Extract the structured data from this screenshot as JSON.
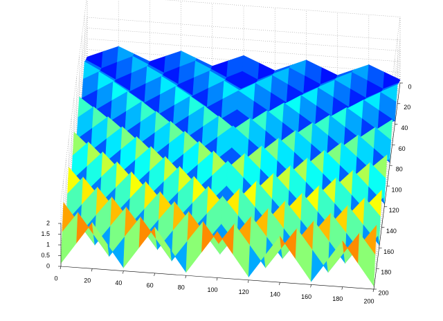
{
  "chart_data": {
    "type": "surface",
    "x": [
      0,
      10,
      20,
      30,
      40,
      50,
      60,
      70,
      80,
      90,
      100,
      110,
      120,
      130,
      140,
      150,
      160,
      170,
      180,
      190,
      200
    ],
    "y": [
      0,
      10,
      20,
      30,
      40,
      50,
      60,
      70,
      80,
      90,
      100,
      110,
      120,
      130,
      140,
      150,
      160,
      170,
      180,
      190,
      200
    ],
    "z": [
      [
        0.15,
        0.45,
        0.75,
        0.45,
        0.15,
        0.45,
        0.75,
        0.45,
        0.15,
        0.45,
        0.75,
        0.45,
        0.15,
        0.45,
        0.75,
        0.45,
        0.15,
        0.45,
        0.75,
        0.45,
        0.15
      ],
      [
        0.49,
        0.15,
        0.49,
        0.82,
        0.49,
        0.15,
        0.49,
        0.82,
        0.49,
        0.15,
        0.49,
        0.15,
        0.49,
        0.82,
        0.49,
        0.15,
        0.49,
        0.82,
        0.49,
        0.15,
        0.49
      ],
      [
        0.89,
        0.52,
        0.15,
        0.52,
        0.89,
        0.52,
        0.15,
        0.52,
        0.89,
        0.52,
        0.15,
        0.52,
        0.89,
        0.52,
        0.15,
        0.52,
        0.89,
        0.52,
        0.15,
        0.52,
        0.89
      ],
      [
        0.56,
        0.96,
        0.56,
        0.15,
        0.56,
        0.96,
        0.56,
        0.15,
        0.56,
        0.96,
        0.56,
        0.96,
        0.56,
        0.15,
        0.56,
        0.96,
        0.56,
        0.15,
        0.56,
        0.96,
        0.56
      ],
      [
        0.15,
        0.59,
        1.03,
        0.59,
        0.15,
        0.59,
        1.03,
        0.59,
        0.15,
        0.59,
        1.03,
        0.59,
        0.15,
        0.59,
        1.03,
        0.59,
        0.15,
        0.59,
        1.03,
        0.59,
        0.15
      ],
      [
        0.63,
        0.15,
        0.63,
        1.1,
        0.63,
        0.15,
        0.63,
        1.1,
        0.63,
        0.15,
        0.63,
        0.15,
        0.63,
        1.1,
        0.63,
        0.15,
        0.63,
        1.1,
        0.63,
        0.15,
        0.63
      ],
      [
        1.17,
        0.66,
        0.15,
        0.66,
        1.17,
        0.66,
        0.15,
        0.66,
        1.17,
        0.66,
        0.15,
        0.66,
        1.17,
        0.66,
        0.15,
        0.66,
        1.17,
        0.66,
        0.15,
        0.66,
        1.17
      ],
      [
        0.7,
        1.24,
        0.7,
        0.15,
        0.7,
        1.24,
        0.7,
        0.15,
        0.7,
        1.24,
        0.7,
        1.24,
        0.7,
        0.15,
        0.7,
        1.24,
        0.7,
        0.15,
        0.7,
        1.24,
        0.7
      ],
      [
        0.15,
        0.73,
        1.31,
        0.73,
        0.15,
        0.73,
        1.31,
        0.73,
        0.15,
        0.73,
        1.31,
        0.73,
        0.15,
        0.73,
        1.31,
        0.73,
        0.15,
        0.73,
        1.31,
        0.73,
        0.15
      ],
      [
        0.77,
        0.15,
        0.77,
        1.38,
        0.77,
        0.15,
        0.77,
        1.38,
        0.77,
        0.15,
        0.77,
        0.15,
        0.77,
        1.38,
        0.77,
        0.15,
        0.77,
        1.38,
        0.77,
        0.15,
        0.77
      ],
      [
        1.45,
        0.8,
        0.15,
        0.8,
        1.45,
        0.8,
        0.15,
        0.8,
        1.45,
        0.8,
        0.15,
        0.8,
        1.45,
        0.8,
        0.15,
        0.8,
        1.45,
        0.8,
        0.15,
        0.8,
        1.45
      ],
      [
        0.84,
        1.52,
        0.84,
        0.15,
        0.84,
        1.52,
        0.84,
        0.15,
        0.84,
        1.52,
        0.84,
        1.52,
        0.84,
        0.15,
        0.84,
        1.52,
        0.84,
        0.15,
        0.84,
        1.52,
        0.84
      ],
      [
        0.15,
        0.87,
        1.59,
        0.87,
        0.15,
        0.87,
        1.59,
        0.87,
        0.15,
        0.87,
        1.59,
        0.87,
        0.15,
        0.87,
        1.59,
        0.87,
        0.15,
        0.87,
        1.59,
        0.87,
        0.15
      ],
      [
        0.91,
        0.15,
        0.91,
        1.66,
        0.91,
        0.15,
        0.91,
        1.66,
        0.91,
        0.15,
        0.91,
        0.15,
        0.91,
        1.66,
        0.91,
        0.15,
        0.91,
        1.66,
        0.91,
        0.15,
        0.91
      ],
      [
        1.73,
        0.94,
        0.15,
        0.94,
        1.73,
        0.94,
        0.15,
        0.94,
        1.73,
        0.94,
        0.15,
        0.94,
        1.73,
        0.94,
        0.15,
        0.94,
        1.73,
        0.94,
        0.15,
        0.94,
        1.73
      ],
      [
        0.98,
        1.8,
        0.98,
        0.15,
        0.98,
        1.8,
        0.98,
        0.15,
        0.98,
        1.8,
        0.98,
        1.8,
        0.98,
        0.15,
        0.98,
        1.8,
        0.98,
        0.15,
        0.98,
        1.8,
        0.98
      ],
      [
        0.15,
        1.01,
        1.87,
        1.01,
        0.15,
        1.01,
        1.87,
        1.01,
        0.15,
        1.01,
        1.87,
        1.01,
        0.15,
        1.01,
        1.87,
        1.01,
        0.15,
        1.01,
        1.87,
        1.01,
        0.15
      ],
      [
        1.05,
        0.15,
        1.05,
        1.94,
        1.05,
        0.15,
        1.05,
        1.94,
        1.05,
        0.15,
        1.05,
        0.15,
        1.05,
        1.94,
        1.05,
        0.15,
        1.05,
        1.94,
        1.05,
        0.15,
        1.05
      ],
      [
        2.01,
        1.08,
        0.15,
        1.08,
        2.01,
        1.08,
        0.15,
        1.08,
        2.01,
        1.08,
        0.15,
        1.08,
        2.01,
        1.08,
        0.15,
        1.08,
        2.01,
        1.08,
        0.15,
        1.08,
        2.01
      ],
      [
        1.12,
        2.08,
        1.12,
        0.15,
        1.12,
        2.08,
        1.12,
        0.15,
        1.12,
        2.08,
        1.12,
        2.08,
        1.12,
        0.15,
        1.12,
        2.08,
        1.12,
        0.15,
        1.12,
        2.08,
        1.12
      ],
      [
        0.15,
        1.15,
        2.15,
        1.15,
        0.15,
        1.15,
        2.15,
        1.15,
        0.15,
        1.15,
        2.15,
        1.15,
        0.15,
        1.15,
        2.15,
        1.15,
        0.15,
        1.15,
        2.15,
        1.15,
        0.15
      ]
    ],
    "xlim": [
      0,
      200
    ],
    "ylim": [
      0,
      200
    ],
    "zlim": [
      0,
      2.2
    ],
    "xticks": [
      0,
      20,
      40,
      60,
      80,
      100,
      120,
      140,
      160,
      180,
      200
    ],
    "yticks": [
      0,
      20,
      40,
      60,
      80,
      100,
      120,
      140,
      160,
      180,
      200
    ],
    "zticks": [
      0,
      0.5,
      1,
      1.5,
      2
    ],
    "colormap": "jet",
    "grid": true
  }
}
